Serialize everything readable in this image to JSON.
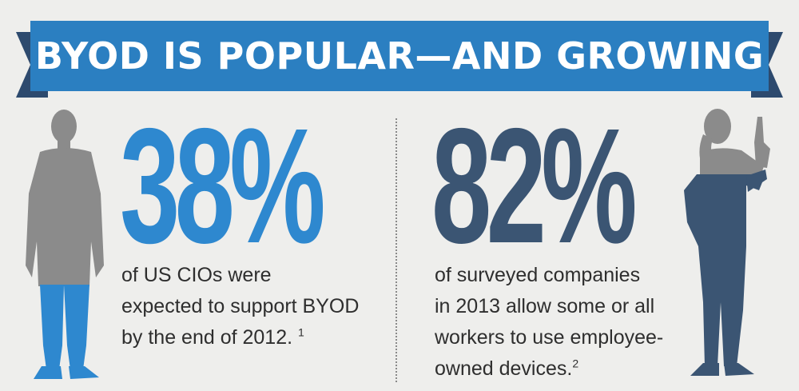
{
  "colors": {
    "background": "#eeeeec",
    "banner": "#2b7fc1",
    "banner_dark": "#2d4a6e",
    "title_text": "#ffffff",
    "accent_blue": "#2e88cf",
    "accent_navy": "#3b5573",
    "gray": "#8b8b8b",
    "text": "#2e2e2e"
  },
  "banner": {
    "title": "BYOD IS POPULAR—AND GROWING"
  },
  "left_stat": {
    "value": "38%",
    "lines": [
      "of US CIOs were",
      "expected to support BYOD",
      "by the end of 2012."
    ],
    "footnote": "1"
  },
  "right_stat": {
    "value": "82%",
    "lines": [
      "of surveyed companies",
      "in 2013 allow some or all",
      "workers to use employee-",
      "owned devices."
    ],
    "footnote": "2"
  },
  "icons": {
    "left_figure": "man-standing-silhouette-icon",
    "right_figure": "man-on-phone-silhouette-icon"
  }
}
